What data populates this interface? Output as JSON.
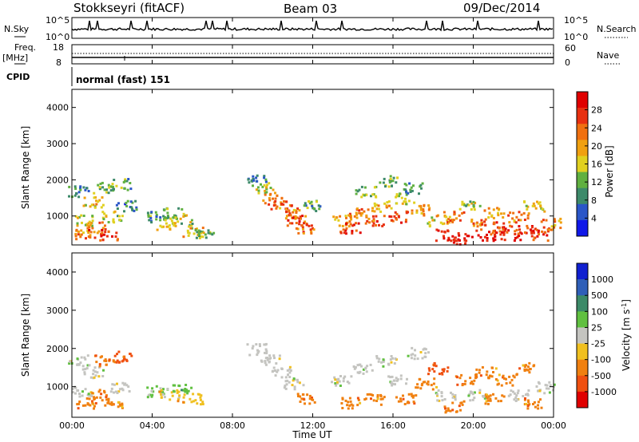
{
  "header": {
    "radar": "Stokkseyri (fitACF)",
    "beam": "Beam 03",
    "date": "09/Dec/2014"
  },
  "panels": {
    "nsky": {
      "label": "N.Sky",
      "ticks": [
        "10^5",
        "10^0"
      ]
    },
    "nsearch": {
      "label": "N.Search",
      "ticks": [
        "10^5",
        "10^0"
      ]
    },
    "freq": {
      "label_top": "Freq.",
      "label_unit": "[MHz]",
      "ticks": [
        "18",
        "8"
      ]
    },
    "nave": {
      "label": "Nave",
      "ticks": [
        "60",
        "0"
      ]
    },
    "cpid": {
      "label": "CPID",
      "value": "normal (fast) 151"
    }
  },
  "colors": {
    "power_scale": [
      "#1018e8",
      "#2a56c8",
      "#3d8a6a",
      "#60b040",
      "#e0d020",
      "#f0a010",
      "#f07010",
      "#e83010",
      "#e00000"
    ],
    "velocity_scale": [
      "#1020d0",
      "#2f5fb8",
      "#3c8a68",
      "#60c040",
      "#c4c4c0",
      "#f0c020",
      "#f08010",
      "#f05010",
      "#e00000"
    ]
  },
  "chart_data": [
    {
      "type": "heatmap",
      "name": "power",
      "ylabel": "Slant Range [km]",
      "yticks": [
        "4000",
        "3000",
        "2000",
        "1000"
      ],
      "ylim": [
        200,
        4500
      ],
      "colorbar_label": "Power [dB]",
      "colorbar_ticks": [
        "28",
        "24",
        "20",
        "16",
        "12",
        "8",
        "4"
      ],
      "clim": [
        0,
        32
      ],
      "x_hours": [
        0.5,
        1.0,
        1.5,
        2.0,
        2.5,
        4.0,
        5.0,
        6.0,
        9.0,
        10.0,
        11.0,
        12.0,
        13.5,
        14.5,
        15.5,
        16.5,
        17.5,
        18.5,
        19.5,
        20.5,
        21.5,
        22.5,
        23.5
      ],
      "cells": [
        {
          "t": 0.3,
          "r": 1700,
          "v": 8
        },
        {
          "t": 0.5,
          "r": 900,
          "v": 16
        },
        {
          "t": 0.6,
          "r": 500,
          "v": 22
        },
        {
          "t": 1.0,
          "r": 1400,
          "v": 18
        },
        {
          "t": 1.2,
          "r": 700,
          "v": 24
        },
        {
          "t": 1.5,
          "r": 1800,
          "v": 12
        },
        {
          "t": 1.8,
          "r": 500,
          "v": 26
        },
        {
          "t": 2.0,
          "r": 1000,
          "v": 14
        },
        {
          "t": 2.4,
          "r": 1900,
          "v": 10
        },
        {
          "t": 2.7,
          "r": 1300,
          "v": 8
        },
        {
          "t": 4.2,
          "r": 1000,
          "v": 10
        },
        {
          "t": 4.6,
          "r": 800,
          "v": 16
        },
        {
          "t": 5.0,
          "r": 1100,
          "v": 12
        },
        {
          "t": 5.5,
          "r": 900,
          "v": 14
        },
        {
          "t": 6.0,
          "r": 600,
          "v": 18
        },
        {
          "t": 6.5,
          "r": 500,
          "v": 12
        },
        {
          "t": 9.2,
          "r": 2000,
          "v": 8
        },
        {
          "t": 9.6,
          "r": 1800,
          "v": 16
        },
        {
          "t": 10.0,
          "r": 1500,
          "v": 20
        },
        {
          "t": 10.4,
          "r": 1300,
          "v": 26
        },
        {
          "t": 10.8,
          "r": 1100,
          "v": 22
        },
        {
          "t": 11.2,
          "r": 900,
          "v": 26
        },
        {
          "t": 11.6,
          "r": 700,
          "v": 24
        },
        {
          "t": 12.0,
          "r": 1300,
          "v": 10
        },
        {
          "t": 13.4,
          "r": 900,
          "v": 20
        },
        {
          "t": 13.8,
          "r": 700,
          "v": 26
        },
        {
          "t": 14.2,
          "r": 1100,
          "v": 22
        },
        {
          "t": 14.6,
          "r": 1700,
          "v": 12
        },
        {
          "t": 15.0,
          "r": 900,
          "v": 24
        },
        {
          "t": 15.4,
          "r": 1300,
          "v": 18
        },
        {
          "t": 15.8,
          "r": 2000,
          "v": 12
        },
        {
          "t": 16.2,
          "r": 1000,
          "v": 26
        },
        {
          "t": 16.6,
          "r": 1500,
          "v": 16
        },
        {
          "t": 17.0,
          "r": 1800,
          "v": 10
        },
        {
          "t": 17.4,
          "r": 1200,
          "v": 20
        },
        {
          "t": 18.2,
          "r": 900,
          "v": 18
        },
        {
          "t": 18.6,
          "r": 500,
          "v": 28
        },
        {
          "t": 19.0,
          "r": 1000,
          "v": 22
        },
        {
          "t": 19.4,
          "r": 400,
          "v": 30
        },
        {
          "t": 19.8,
          "r": 1300,
          "v": 14
        },
        {
          "t": 20.2,
          "r": 800,
          "v": 24
        },
        {
          "t": 20.6,
          "r": 500,
          "v": 28
        },
        {
          "t": 21.0,
          "r": 1100,
          "v": 20
        },
        {
          "t": 21.4,
          "r": 700,
          "v": 26
        },
        {
          "t": 21.8,
          "r": 500,
          "v": 28
        },
        {
          "t": 22.2,
          "r": 1000,
          "v": 22
        },
        {
          "t": 22.6,
          "r": 600,
          "v": 26
        },
        {
          "t": 23.0,
          "r": 1300,
          "v": 16
        },
        {
          "t": 23.4,
          "r": 500,
          "v": 28
        },
        {
          "t": 23.8,
          "r": 800,
          "v": 22
        }
      ]
    },
    {
      "type": "heatmap",
      "name": "velocity",
      "ylabel": "Slant Range [km]",
      "yticks": [
        "4000",
        "3000",
        "2000",
        "1000"
      ],
      "ylim": [
        200,
        4500
      ],
      "xlabel": "Time UT",
      "xticks": [
        "00:00",
        "04:00",
        "08:00",
        "12:00",
        "16:00",
        "20:00",
        "00:00"
      ],
      "xlim": [
        0,
        24
      ],
      "colorbar_label": "Velocity [m s",
      "colorbar_label_sup": "-1",
      "colorbar_label_end": "]",
      "colorbar_ticks": [
        "1000",
        "500",
        "100",
        "25",
        "-25",
        "-100",
        "-500",
        "-1000"
      ],
      "cells": [
        {
          "t": 0.3,
          "r": 1700,
          "c": 4
        },
        {
          "t": 0.5,
          "r": 900,
          "c": 4
        },
        {
          "t": 0.7,
          "r": 600,
          "c": 6
        },
        {
          "t": 1.0,
          "r": 1400,
          "c": 4
        },
        {
          "t": 1.3,
          "r": 800,
          "c": 6
        },
        {
          "t": 1.6,
          "r": 1700,
          "c": 6
        },
        {
          "t": 2.0,
          "r": 500,
          "c": 6
        },
        {
          "t": 2.3,
          "r": 1000,
          "c": 4
        },
        {
          "t": 2.5,
          "r": 1800,
          "c": 7
        },
        {
          "t": 4.2,
          "r": 900,
          "c": 3
        },
        {
          "t": 4.8,
          "r": 800,
          "c": 5
        },
        {
          "t": 5.4,
          "r": 1000,
          "c": 3
        },
        {
          "t": 6.0,
          "r": 700,
          "c": 5
        },
        {
          "t": 9.2,
          "r": 2000,
          "c": 4
        },
        {
          "t": 9.8,
          "r": 1700,
          "c": 4
        },
        {
          "t": 10.4,
          "r": 1400,
          "c": 4
        },
        {
          "t": 11.0,
          "r": 1100,
          "c": 4
        },
        {
          "t": 11.6,
          "r": 700,
          "c": 6
        },
        {
          "t": 13.4,
          "r": 1200,
          "c": 4
        },
        {
          "t": 13.8,
          "r": 600,
          "c": 6
        },
        {
          "t": 14.4,
          "r": 1500,
          "c": 4
        },
        {
          "t": 15.0,
          "r": 700,
          "c": 6
        },
        {
          "t": 15.6,
          "r": 1700,
          "c": 4
        },
        {
          "t": 16.2,
          "r": 1200,
          "c": 4
        },
        {
          "t": 16.6,
          "r": 700,
          "c": 6
        },
        {
          "t": 17.2,
          "r": 1900,
          "c": 4
        },
        {
          "t": 17.6,
          "r": 1100,
          "c": 6
        },
        {
          "t": 18.2,
          "r": 1500,
          "c": 7
        },
        {
          "t": 18.6,
          "r": 800,
          "c": 4
        },
        {
          "t": 19.0,
          "r": 500,
          "c": 6
        },
        {
          "t": 19.6,
          "r": 1200,
          "c": 6
        },
        {
          "t": 20.2,
          "r": 800,
          "c": 4
        },
        {
          "t": 20.6,
          "r": 1400,
          "c": 6
        },
        {
          "t": 21.0,
          "r": 700,
          "c": 6
        },
        {
          "t": 21.6,
          "r": 1200,
          "c": 6
        },
        {
          "t": 22.2,
          "r": 800,
          "c": 4
        },
        {
          "t": 22.6,
          "r": 1500,
          "c": 6
        },
        {
          "t": 23.0,
          "r": 600,
          "c": 6
        },
        {
          "t": 23.6,
          "r": 1000,
          "c": 4
        }
      ]
    }
  ]
}
